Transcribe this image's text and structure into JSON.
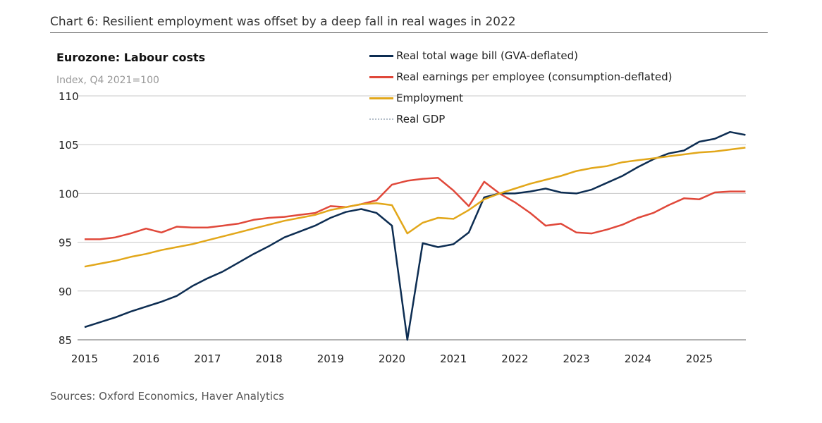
{
  "title": "Chart 6: Resilient employment was offset by a deep fall in real wages in 2022",
  "source": "Sources: Oxford Economics, Haver Analytics",
  "chart_data": {
    "type": "line",
    "title": "Eurozone: Labour costs",
    "ylabel": "Index, Q4 2021=100",
    "ylim": [
      85,
      110
    ],
    "yticks": [
      "85",
      "90",
      "95",
      "100",
      "105",
      "110"
    ],
    "xticks": [
      "2015",
      "2016",
      "2017",
      "2018",
      "2019",
      "2020",
      "2021",
      "2022",
      "2023",
      "2024",
      "2025"
    ],
    "x_start": "2015 Q1",
    "frequency": "quarterly",
    "grid": true,
    "legend": "top-center",
    "series": [
      {
        "name": "Real total wage bill (GVA-deflated)",
        "color": "#0d2d52",
        "values": [
          86.3,
          86.8,
          87.3,
          87.9,
          88.4,
          88.9,
          89.5,
          90.5,
          91.3,
          92.0,
          92.9,
          93.8,
          94.6,
          95.5,
          96.1,
          96.7,
          97.5,
          98.1,
          98.4,
          98.0,
          96.7,
          85.0,
          94.9,
          94.5,
          94.8,
          96.0,
          99.6,
          100.0,
          100.0,
          100.2,
          100.5,
          100.1,
          100.0,
          100.4,
          101.1,
          101.8,
          102.7,
          103.5,
          104.1,
          104.4,
          105.3,
          105.6,
          106.3,
          106.0
        ]
      },
      {
        "name": "Real earnings per employee (consumption-deflated)",
        "color": "#e0483a",
        "values": [
          95.3,
          95.3,
          95.5,
          95.9,
          96.4,
          96.0,
          96.6,
          96.5,
          96.5,
          96.7,
          96.9,
          97.3,
          97.5,
          97.6,
          97.8,
          98.0,
          98.7,
          98.6,
          98.9,
          99.3,
          100.9,
          101.3,
          101.5,
          101.6,
          100.3,
          98.7,
          101.2,
          100.0,
          99.1,
          98.0,
          96.7,
          96.9,
          96.0,
          95.9,
          96.3,
          96.8,
          97.5,
          98.0,
          98.8,
          99.5,
          99.4,
          100.1,
          100.2,
          100.2
        ]
      },
      {
        "name": "Employment",
        "color": "#e2a71a",
        "values": [
          92.5,
          92.8,
          93.1,
          93.5,
          93.8,
          94.2,
          94.5,
          94.8,
          95.2,
          95.6,
          96.0,
          96.4,
          96.8,
          97.2,
          97.5,
          97.8,
          98.3,
          98.6,
          98.9,
          99.0,
          98.8,
          95.9,
          97.0,
          97.5,
          97.4,
          98.3,
          99.4,
          100.0,
          100.5,
          101.0,
          101.4,
          101.8,
          102.3,
          102.6,
          102.8,
          103.2,
          103.4,
          103.6,
          103.8,
          104.0,
          104.2,
          104.3,
          104.5,
          104.7
        ]
      },
      {
        "name": "Real GDP",
        "color": "#0d2d52",
        "dotted": true,
        "values": []
      }
    ]
  }
}
